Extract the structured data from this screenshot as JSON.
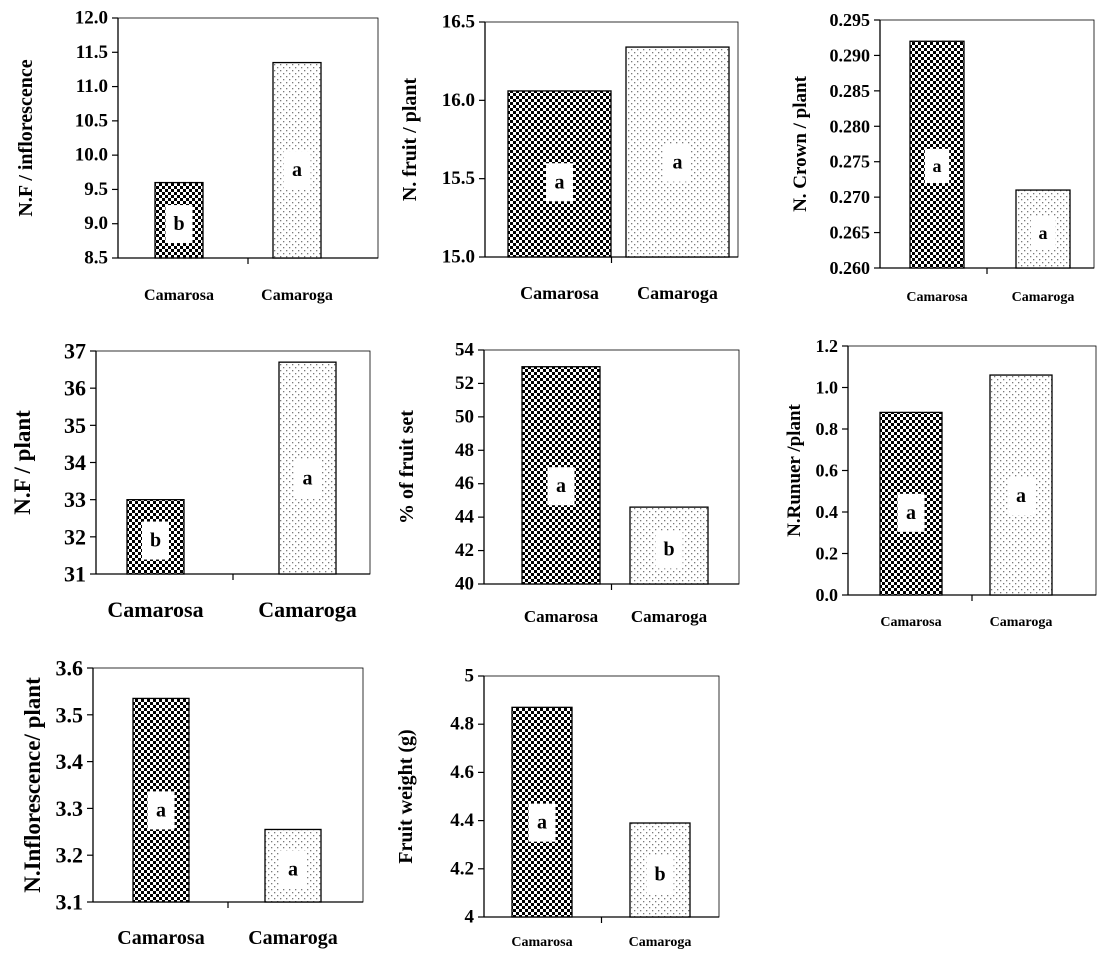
{
  "figure": {
    "pattern_colors": {
      "camarosa_dark": "#000000",
      "camaroga_dot": "#7a7a7a",
      "frame": "#000000"
    },
    "bar_patterns": [
      "checker",
      "dots"
    ]
  },
  "chart_data": [
    {
      "type": "bar",
      "ylabel": "N.F / inflorescence",
      "categories": [
        "Camarosa",
        "Camaroga"
      ],
      "values": [
        9.6,
        11.35
      ],
      "letters": [
        "b",
        "a"
      ],
      "ylim": [
        8.5,
        12.0
      ],
      "yticks": [
        "8.5",
        "9.0",
        "9.5",
        "10.0",
        "10.5",
        "11.0",
        "11.5",
        "12.0"
      ]
    },
    {
      "type": "bar",
      "ylabel": "N. fruit / plant",
      "categories": [
        "Camarosa",
        "Camaroga"
      ],
      "values": [
        16.06,
        16.34
      ],
      "letters": [
        "a",
        "a"
      ],
      "ylim": [
        15.0,
        16.5
      ],
      "yticks": [
        "15.0",
        "15.5",
        "16.0",
        "16.5"
      ]
    },
    {
      "type": "bar",
      "ylabel": "N. Crown / plant",
      "categories": [
        "Camarosa",
        "Camaroga"
      ],
      "values": [
        0.292,
        0.271
      ],
      "letters": [
        "a",
        "a"
      ],
      "ylim": [
        0.26,
        0.295
      ],
      "yticks": [
        "0.260",
        "0.265",
        "0.270",
        "0.275",
        "0.280",
        "0.285",
        "0.290",
        "0.295"
      ]
    },
    {
      "type": "bar",
      "ylabel": "N.F / plant",
      "categories": [
        "Camarosa",
        "Camaroga"
      ],
      "values": [
        33.0,
        36.7
      ],
      "letters": [
        "b",
        "a"
      ],
      "ylim": [
        31,
        37
      ],
      "yticks": [
        "31",
        "32",
        "33",
        "34",
        "35",
        "36",
        "37"
      ]
    },
    {
      "type": "bar",
      "ylabel": "% of fruit set",
      "categories": [
        "Camarosa",
        "Camaroga"
      ],
      "values": [
        53.0,
        44.6
      ],
      "letters": [
        "a",
        "b"
      ],
      "ylim": [
        40,
        54
      ],
      "yticks": [
        "40",
        "42",
        "44",
        "46",
        "48",
        "50",
        "52",
        "54"
      ]
    },
    {
      "type": "bar",
      "ylabel": "N.Runuer /plant",
      "categories": [
        "Camarosa",
        "Camaroga"
      ],
      "values": [
        0.88,
        1.06
      ],
      "letters": [
        "a",
        "a"
      ],
      "ylim": [
        0.0,
        1.2
      ],
      "yticks": [
        "0.0",
        "0.2",
        "0.4",
        "0.6",
        "0.8",
        "1.0",
        "1.2"
      ]
    },
    {
      "type": "bar",
      "ylabel": "N.Inflorescence/ plant",
      "categories": [
        "Camarosa",
        "Camaroga"
      ],
      "values": [
        3.535,
        3.255
      ],
      "letters": [
        "a",
        "a"
      ],
      "ylim": [
        3.1,
        3.6
      ],
      "yticks": [
        "3.1",
        "3.2",
        "3.3",
        "3.4",
        "3.5",
        "3.6"
      ]
    },
    {
      "type": "bar",
      "ylabel": "Fruit weight (g)",
      "categories": [
        "Camarosa",
        "Camaroga"
      ],
      "values": [
        4.87,
        4.39
      ],
      "letters": [
        "a",
        "b"
      ],
      "ylim": [
        4.0,
        5.0
      ],
      "yticks": [
        "4",
        "4.2",
        "4.4",
        "4.6",
        "4.8",
        "5"
      ]
    }
  ]
}
